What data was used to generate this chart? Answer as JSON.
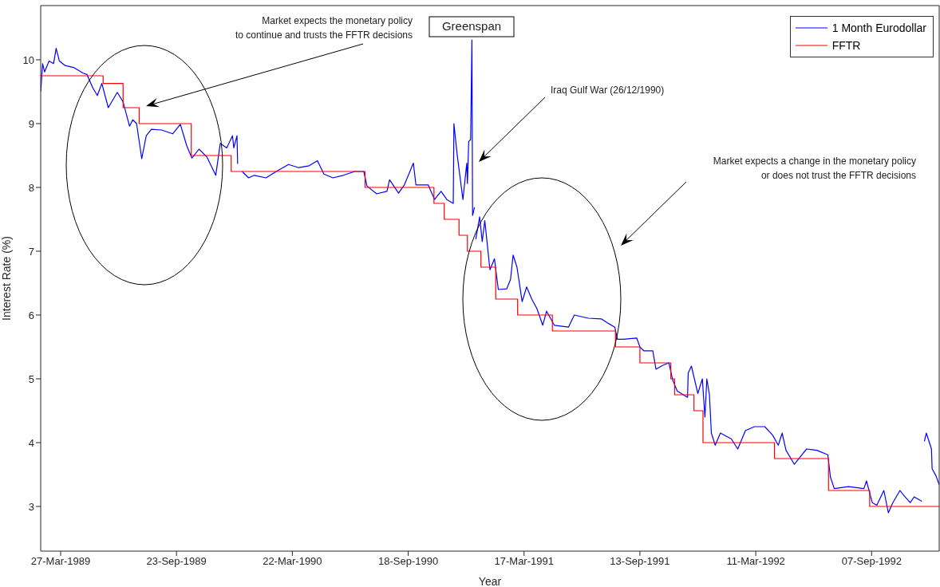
{
  "chart_data": {
    "type": "line",
    "xlabel": "Year",
    "ylabel": "Interest Rate (%)",
    "xlim": [
      "1989-02-24",
      "1992-12-21"
    ],
    "ylim": [
      2.3,
      10.85
    ],
    "yticks": [
      3,
      4,
      5,
      6,
      7,
      8,
      9,
      10
    ],
    "xticks": [
      {
        "value": "1989-03-27",
        "label": "27-Mar-1989"
      },
      {
        "value": "1989-09-23",
        "label": "23-Sep-1989"
      },
      {
        "value": "1990-03-22",
        "label": "22-Mar-1990"
      },
      {
        "value": "1990-09-18",
        "label": "18-Sep-1990"
      },
      {
        "value": "1991-03-17",
        "label": "17-Mar-1991"
      },
      {
        "value": "1991-09-13",
        "label": "13-Sep-1991"
      },
      {
        "value": "1992-03-11",
        "label": "11-Mar-1992"
      },
      {
        "value": "1992-09-07",
        "label": "07-Sep-1992"
      }
    ],
    "legend": "top right",
    "grid": false,
    "marker": "none",
    "line_style": "solid",
    "annotations": [
      "Market expects the monetary policy\nto continue and trusts the FFTR decisions",
      "Greenspan",
      "Iraq Gulf War (26/12/1990)",
      "Market expects a change in the monetary policy\nor does not trust the FFTR decisions"
    ],
    "series": [
      {
        "name": "1 Month Eurodollar",
        "type": "line",
        "color": "#0000ff",
        "x": [
          "1989-02-24",
          "1989-02-27",
          "1989-03-02",
          "1989-03-09",
          "1989-03-16",
          "1989-03-20",
          "1989-03-25",
          "1989-04-03",
          "1989-04-16",
          "1989-05-01",
          "1989-05-07",
          "1989-05-16",
          "1989-05-23",
          "1989-05-30",
          "1989-06-09",
          "1989-06-23",
          "1989-07-02",
          "1989-07-12",
          "1989-07-17",
          "1989-07-23",
          "1989-07-31",
          "1989-08-07",
          "1989-08-15",
          "1989-08-31",
          "1989-09-17",
          "1989-09-29",
          "1989-10-09",
          "1989-10-17",
          "1989-10-28",
          "1989-11-09",
          "1989-11-23",
          "1989-11-30",
          "1989-12-10",
          "1989-12-19",
          "1989-12-21",
          "1989-12-26",
          "1989-12-27",
          "1989-12-30",
          "1990-01-03",
          "1990-01-13",
          "1990-01-22",
          "1990-02-09",
          "1990-02-25",
          "1990-03-16",
          "1990-04-01",
          "1990-04-17",
          "1990-04-30",
          "1990-05-10",
          "1990-05-24",
          "1990-06-09",
          "1990-06-27",
          "1990-07-11",
          "1990-07-16",
          "1990-07-31",
          "1990-08-16",
          "1990-08-20",
          "1990-09-03",
          "1990-09-12",
          "1990-09-26",
          "1990-09-30",
          "1990-10-19",
          "1990-10-29",
          "1990-11-08",
          "1990-11-17",
          "1990-11-27",
          "1990-11-28",
          "1990-12-03",
          "1990-12-12",
          "1990-12-18",
          "1990-12-19",
          "1990-12-21",
          "1990-12-24",
          "1990-12-26",
          "1990-12-27",
          "1990-12-30",
          "1990-12-31",
          "1991-01-01",
          "1991-01-07",
          "1991-01-11",
          "1991-01-15",
          "1991-01-23",
          "1991-01-30",
          "1991-02-05",
          "1991-02-18",
          "1991-02-24",
          "1991-02-28",
          "1991-03-06",
          "1991-03-14",
          "1991-03-21",
          "1991-03-29",
          "1991-04-06",
          "1991-04-15",
          "1991-04-21",
          "1991-05-03",
          "1991-05-25",
          "1991-06-03",
          "1991-06-25",
          "1991-07-15",
          "1991-07-24",
          "1991-08-05",
          "1991-08-09",
          "1991-08-18",
          "1991-09-08",
          "1991-09-13",
          "1991-09-19",
          "1991-10-03",
          "1991-10-08",
          "1991-10-18",
          "1991-10-28",
          "1991-11-03",
          "1991-11-10",
          "1991-11-26",
          "1991-11-27",
          "1991-12-02",
          "1991-12-12",
          "1991-12-19",
          "1991-12-23",
          "1991-12-26",
          "1991-12-30",
          "1992-01-02",
          "1992-01-08",
          "1992-01-16",
          "1992-02-02",
          "1992-02-12",
          "1992-02-24",
          "1992-03-09",
          "1992-03-25",
          "1992-04-06",
          "1992-04-15",
          "1992-04-21",
          "1992-04-27",
          "1992-05-10",
          "1992-05-20",
          "1992-05-29",
          "1992-06-14",
          "1992-07-01",
          "1992-07-05",
          "1992-07-11",
          "1992-08-02",
          "1992-08-26",
          "1992-08-30",
          "1992-09-08",
          "1992-09-15",
          "1992-09-26",
          "1992-10-03",
          "1992-10-10",
          "1992-10-21",
          "1992-10-28",
          "1992-11-06",
          "1992-11-12",
          "1992-11-24",
          "1992-11-26",
          "1992-11-28",
          "1992-12-01",
          "1992-12-09",
          "1992-12-10",
          "1992-12-16",
          "1992-12-21"
        ],
        "values": [
          9.5,
          9.94,
          9.81,
          9.98,
          9.94,
          10.18,
          9.98,
          9.91,
          9.88,
          9.79,
          9.77,
          9.56,
          9.44,
          9.63,
          9.25,
          9.49,
          9.34,
          8.96,
          9.06,
          9.0,
          8.45,
          8.81,
          8.91,
          8.9,
          8.84,
          8.99,
          8.65,
          8.46,
          8.6,
          8.48,
          8.19,
          8.69,
          8.62,
          8.81,
          8.62,
          8.81,
          8.37,
          null,
          8.25,
          8.15,
          8.19,
          8.15,
          8.25,
          8.36,
          8.31,
          8.34,
          8.42,
          8.21,
          8.15,
          8.19,
          8.25,
          8.25,
          8.02,
          7.9,
          7.94,
          8.12,
          7.91,
          8.04,
          8.38,
          8.04,
          8.04,
          7.81,
          7.94,
          7.81,
          7.75,
          9.0,
          8.52,
          7.81,
          8.38,
          8.06,
          8.72,
          8.75,
          10.31,
          7.56,
          7.69,
          null,
          7.19,
          7.54,
          7.15,
          7.48,
          6.71,
          6.88,
          6.4,
          6.41,
          6.56,
          6.94,
          6.75,
          6.21,
          6.44,
          6.25,
          6.1,
          5.84,
          6.06,
          5.84,
          5.81,
          6.0,
          5.95,
          5.94,
          5.88,
          5.81,
          5.62,
          5.62,
          5.64,
          5.5,
          5.44,
          5.44,
          5.15,
          5.21,
          5.25,
          4.98,
          4.81,
          4.71,
          5.09,
          5.2,
          4.77,
          5.0,
          4.4,
          5.0,
          4.75,
          4.15,
          3.96,
          4.15,
          4.06,
          3.9,
          4.19,
          4.25,
          4.25,
          4.12,
          3.96,
          4.15,
          3.88,
          3.66,
          3.79,
          3.9,
          3.88,
          3.81,
          3.46,
          3.28,
          3.31,
          3.28,
          3.4,
          3.06,
          3.02,
          3.25,
          2.9,
          3.06,
          3.25,
          3.16,
          3.06,
          3.15,
          3.08,
          null,
          4.02,
          4.15,
          3.9,
          3.59,
          3.48,
          3.34
        ]
      },
      {
        "name": "FFTR",
        "type": "step",
        "color": "#ff0000",
        "x": [
          "1989-02-24",
          "1989-06-01",
          "1989-07-02",
          "1989-07-27",
          "1989-10-16",
          "1989-12-17",
          "1990-07-13",
          "1990-10-28",
          "1990-11-13",
          "1990-12-06",
          "1990-12-19",
          "1991-01-09",
          "1991-02-01",
          "1991-03-07",
          "1991-04-30",
          "1991-08-06",
          "1991-09-13",
          "1991-10-31",
          "1991-11-06",
          "1991-12-06",
          "1991-12-20",
          "1992-04-09",
          "1992-07-02",
          "1992-09-04",
          "1992-12-21"
        ],
        "values": [
          9.75,
          9.63,
          9.25,
          9.0,
          8.5,
          8.25,
          8.0,
          7.75,
          7.5,
          7.25,
          7.0,
          6.75,
          6.25,
          6.0,
          5.75,
          5.5,
          5.25,
          5.0,
          4.75,
          4.5,
          4.0,
          3.75,
          3.25,
          3.0,
          3.0
        ]
      }
    ]
  }
}
